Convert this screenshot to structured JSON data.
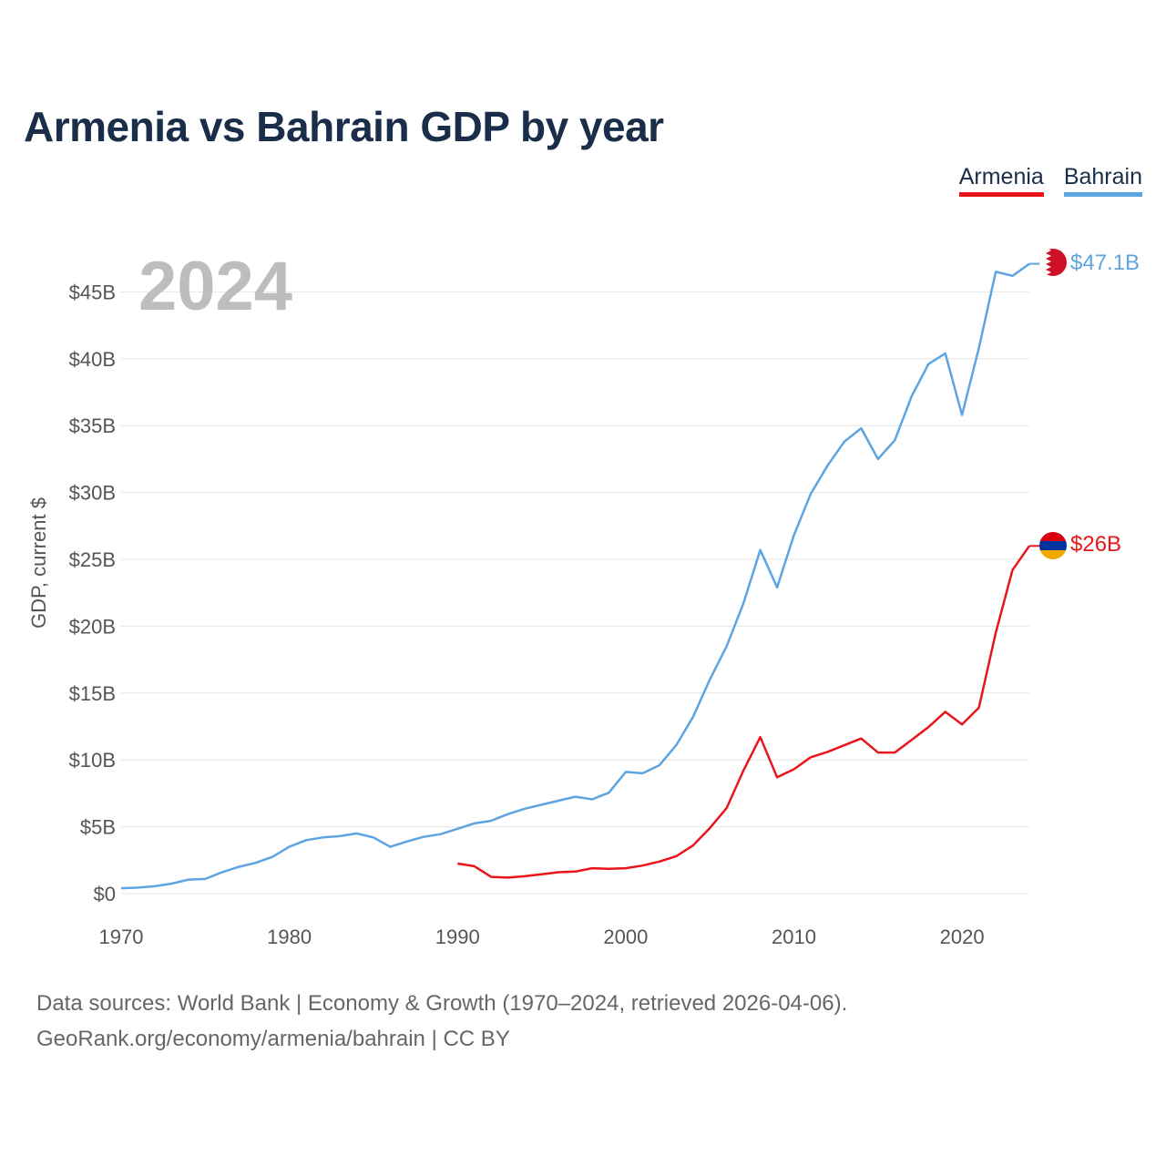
{
  "header": {
    "title": "Armenia vs Bahrain GDP by year"
  },
  "legend": [
    {
      "label": "Armenia",
      "color": "#e8151b"
    },
    {
      "label": "Bahrain",
      "color": "#5ea4e0"
    }
  ],
  "footer": {
    "line1": "Data sources: World Bank | Economy & Growth (1970–2024, retrieved 2026-04-06).",
    "line2": "GeoRank.org/economy/armenia/bahrain | CC BY"
  },
  "chart_data": {
    "type": "line",
    "title": "Armenia vs Bahrain GDP by year",
    "xlabel": "",
    "ylabel": "GDP, current $",
    "year_label": "2024",
    "xlim": [
      1970,
      2024
    ],
    "ylim": [
      0,
      45
    ],
    "grid": true,
    "x_ticks": [
      1970,
      1980,
      1990,
      2000,
      2010,
      2020
    ],
    "x_tick_labels": [
      "1970",
      "1980",
      "1990",
      "2000",
      "2010",
      "2020"
    ],
    "y_ticks": [
      0,
      5,
      10,
      15,
      20,
      25,
      30,
      35,
      40,
      45
    ],
    "y_tick_labels": [
      "$0",
      "$5B",
      "$10B",
      "$15B",
      "$20B",
      "$25B",
      "$30B",
      "$35B",
      "$40B",
      "$45B"
    ],
    "series": [
      {
        "name": "Bahrain",
        "color": "#5ea4e0",
        "end_label": "$47.1B",
        "icon": "bahrain-flag-icon",
        "x": [
          1970,
          1971,
          1972,
          1973,
          1974,
          1975,
          1976,
          1977,
          1978,
          1979,
          1980,
          1981,
          1982,
          1983,
          1984,
          1985,
          1986,
          1987,
          1988,
          1989,
          1990,
          1991,
          1992,
          1993,
          1994,
          1995,
          1996,
          1997,
          1998,
          1999,
          2000,
          2001,
          2002,
          2003,
          2004,
          2005,
          2006,
          2007,
          2008,
          2009,
          2010,
          2011,
          2012,
          2013,
          2014,
          2015,
          2016,
          2017,
          2018,
          2019,
          2020,
          2021,
          2022,
          2023,
          2024
        ],
        "values": [
          0.4,
          0.45,
          0.55,
          0.75,
          1.05,
          1.1,
          1.6,
          2.0,
          2.3,
          2.75,
          3.5,
          4.0,
          4.2,
          4.3,
          4.5,
          4.2,
          3.5,
          3.9,
          4.25,
          4.45,
          4.85,
          5.25,
          5.45,
          5.95,
          6.35,
          6.65,
          6.95,
          7.25,
          7.05,
          7.55,
          9.1,
          9.0,
          9.6,
          11.1,
          13.2,
          16.0,
          18.5,
          21.7,
          25.7,
          22.9,
          26.8,
          29.9,
          32.0,
          33.8,
          34.8,
          32.5,
          33.9,
          37.2,
          39.6,
          40.4,
          35.8,
          40.8,
          46.5,
          46.2,
          47.1
        ]
      },
      {
        "name": "Armenia",
        "color": "#e8151b",
        "end_label": "$26B",
        "icon": "armenia-flag-icon",
        "x": [
          1990,
          1991,
          1992,
          1993,
          1994,
          1995,
          1996,
          1997,
          1998,
          1999,
          2000,
          2001,
          2002,
          2003,
          2004,
          2005,
          2006,
          2007,
          2008,
          2009,
          2010,
          2011,
          2012,
          2013,
          2014,
          2015,
          2016,
          2017,
          2018,
          2019,
          2020,
          2021,
          2022,
          2023,
          2024
        ],
        "values": [
          2.25,
          2.05,
          1.25,
          1.2,
          1.3,
          1.45,
          1.6,
          1.65,
          1.9,
          1.85,
          1.9,
          2.1,
          2.4,
          2.8,
          3.6,
          4.9,
          6.4,
          9.2,
          11.7,
          8.7,
          9.3,
          10.2,
          10.6,
          11.1,
          11.6,
          10.55,
          10.55,
          11.5,
          12.45,
          13.6,
          12.65,
          13.9,
          19.5,
          24.2,
          26.0
        ]
      }
    ]
  }
}
